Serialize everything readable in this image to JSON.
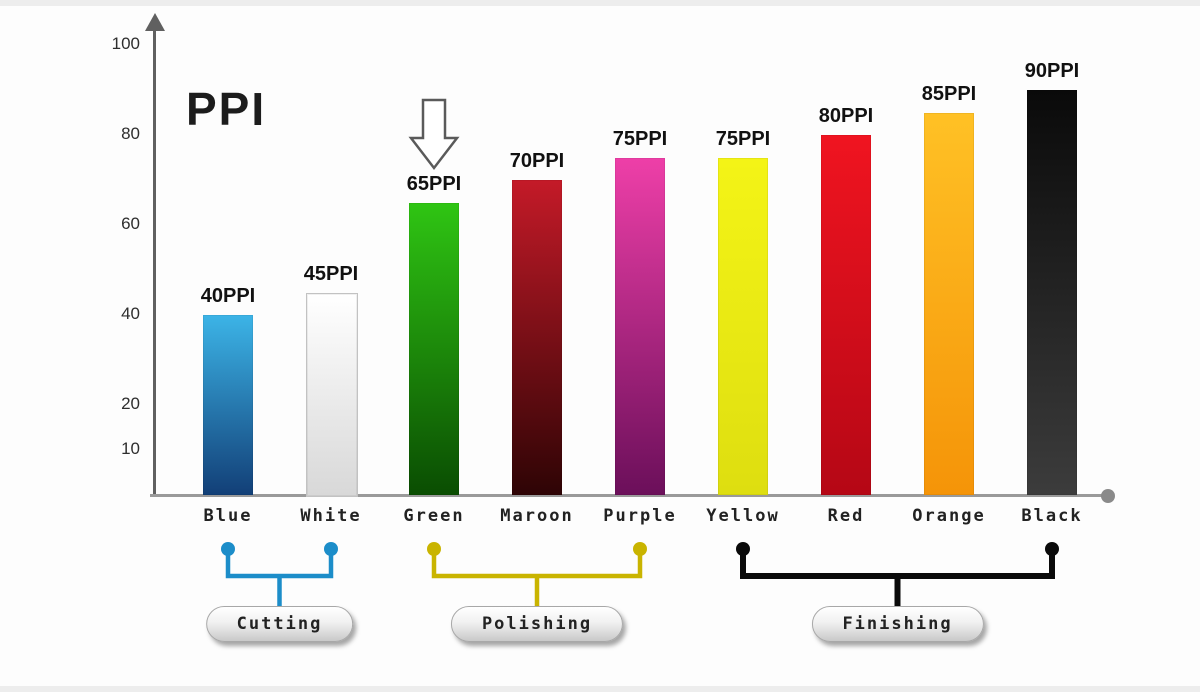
{
  "page": {
    "background": "#fdfdfd"
  },
  "chart_data": {
    "type": "bar",
    "title": "PPI",
    "xlabel": "",
    "ylabel": "",
    "ylim": [
      0,
      100
    ],
    "yticks": [
      100,
      80,
      60,
      40,
      20,
      10
    ],
    "grid": false,
    "legend": false,
    "categories": [
      "Blue",
      "White",
      "Green",
      "Maroon",
      "Purple",
      "Yellow",
      "Red",
      "Orange",
      "Black"
    ],
    "values": [
      40,
      45,
      65,
      70,
      75,
      75,
      80,
      85,
      90
    ],
    "value_labels": [
      "40PPI",
      "45PPI",
      "65PPI",
      "70PPI",
      "75PPI",
      "75PPI",
      "80PPI",
      "85PPI",
      "90PPI"
    ],
    "bar_gradients": [
      [
        "#3cb4e7",
        "#123f77"
      ],
      [
        "#ffffff",
        "#d8d8d8"
      ],
      [
        "#2fc513",
        "#0a4d02"
      ],
      [
        "#c41a28",
        "#2e0405"
      ],
      [
        "#ee3fa8",
        "#6b0f5a"
      ],
      [
        "#f4f416",
        "#dede10"
      ],
      [
        "#f01420",
        "#b50715"
      ],
      [
        "#ffc125",
        "#f59408"
      ],
      [
        "#0a0a0a",
        "#3c3c3c"
      ]
    ],
    "annotations": [
      {
        "type": "down-arrow",
        "target": "Green"
      }
    ],
    "groups": [
      {
        "label": "Cutting",
        "from": "Blue",
        "to": "White",
        "color": "#1c8dc9"
      },
      {
        "label": "Polishing",
        "from": "Green",
        "to": "Purple",
        "color": "#c9b400"
      },
      {
        "label": "Finishing",
        "from": "Yellow",
        "to": "Black",
        "color": "#0a0a0a"
      }
    ]
  }
}
